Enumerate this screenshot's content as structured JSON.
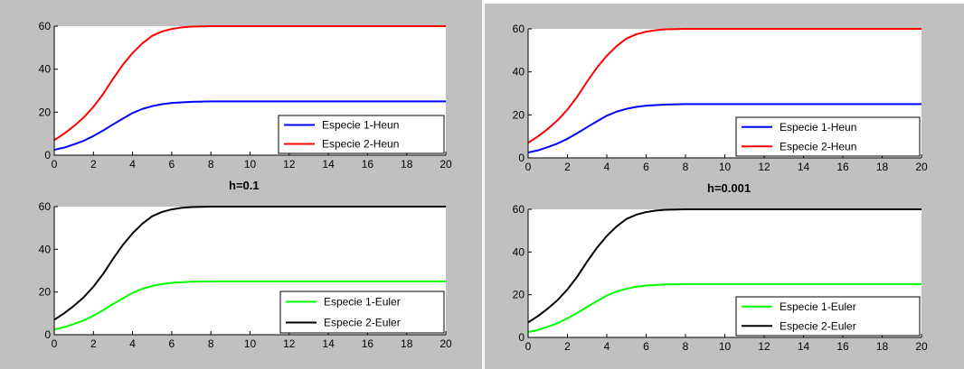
{
  "captions": {
    "left": "h=0.1",
    "right": "h=0.001"
  },
  "chart_data": [
    {
      "type": "line",
      "xlim": [
        0,
        20
      ],
      "ylim": [
        0,
        60
      ],
      "xticks": [
        0,
        2,
        4,
        6,
        8,
        10,
        12,
        14,
        16,
        18,
        20
      ],
      "yticks": [
        0,
        20,
        40,
        60
      ],
      "legend_position": "bottom-right",
      "grid": false,
      "series": [
        {
          "name": "Especie 1-Heun",
          "color": "#0000ff",
          "x": [
            0,
            0.5,
            1,
            1.5,
            2,
            2.5,
            3,
            3.5,
            4,
            4.5,
            5,
            5.5,
            6,
            7,
            8,
            10,
            12,
            14,
            16,
            18,
            20
          ],
          "y": [
            2.5,
            3.5,
            5,
            6.7,
            8.9,
            11.5,
            14.3,
            17,
            19.6,
            21.5,
            22.8,
            23.7,
            24.3,
            24.8,
            25,
            25,
            25,
            25,
            25,
            25,
            25
          ]
        },
        {
          "name": "Especie 2-Heun",
          "color": "#ff0000",
          "x": [
            0,
            0.5,
            1,
            1.5,
            2,
            2.5,
            3,
            3.5,
            4,
            4.5,
            5,
            5.5,
            6,
            6.5,
            7,
            8,
            10,
            12,
            14,
            16,
            18,
            20
          ],
          "y": [
            7,
            10,
            13.5,
            17.5,
            22.5,
            28.5,
            35.5,
            42,
            47.5,
            52,
            55.5,
            57.5,
            58.7,
            59.4,
            59.8,
            60,
            60,
            60,
            60,
            60,
            60,
            60
          ]
        }
      ]
    },
    {
      "type": "line",
      "xlim": [
        0,
        20
      ],
      "ylim": [
        0,
        60
      ],
      "xticks": [
        0,
        2,
        4,
        6,
        8,
        10,
        12,
        14,
        16,
        18,
        20
      ],
      "yticks": [
        0,
        20,
        40,
        60
      ],
      "legend_position": "bottom-right",
      "grid": false,
      "series": [
        {
          "name": "Especie 1-Euler",
          "color": "#00ff00",
          "x": [
            0,
            0.5,
            1,
            1.5,
            2,
            2.5,
            3,
            3.5,
            4,
            4.5,
            5,
            5.5,
            6,
            7,
            8,
            10,
            12,
            14,
            16,
            18,
            20
          ],
          "y": [
            2.5,
            3.5,
            5,
            6.7,
            8.9,
            11.5,
            14.3,
            17,
            19.6,
            21.5,
            22.8,
            23.7,
            24.3,
            24.8,
            25,
            25,
            25,
            25,
            25,
            25,
            25
          ]
        },
        {
          "name": "Especie 2-Euler",
          "color": "#000000",
          "x": [
            0,
            0.5,
            1,
            1.5,
            2,
            2.5,
            3,
            3.5,
            4,
            4.5,
            5,
            5.5,
            6,
            6.5,
            7,
            8,
            10,
            12,
            14,
            16,
            18,
            20
          ],
          "y": [
            7,
            10,
            13.5,
            17.5,
            22.5,
            28.5,
            35.5,
            42,
            47.5,
            52,
            55.5,
            57.5,
            58.7,
            59.4,
            59.8,
            60,
            60,
            60,
            60,
            60,
            60,
            60
          ]
        }
      ]
    },
    {
      "type": "line",
      "xlim": [
        0,
        20
      ],
      "ylim": [
        0,
        60
      ],
      "xticks": [
        0,
        2,
        4,
        6,
        8,
        10,
        12,
        14,
        16,
        18,
        20
      ],
      "yticks": [
        0,
        20,
        40,
        60
      ],
      "legend_position": "bottom-right",
      "grid": false,
      "series": [
        {
          "name": "Especie 1-Heun",
          "color": "#0000ff",
          "x": [
            0,
            0.5,
            1,
            1.5,
            2,
            2.5,
            3,
            3.5,
            4,
            4.5,
            5,
            5.5,
            6,
            7,
            8,
            10,
            12,
            14,
            16,
            18,
            20
          ],
          "y": [
            2.5,
            3.5,
            5,
            6.7,
            8.9,
            11.5,
            14.3,
            17,
            19.6,
            21.5,
            22.8,
            23.7,
            24.3,
            24.8,
            25,
            25,
            25,
            25,
            25,
            25,
            25
          ]
        },
        {
          "name": "Especie 2-Heun",
          "color": "#ff0000",
          "x": [
            0,
            0.5,
            1,
            1.5,
            2,
            2.5,
            3,
            3.5,
            4,
            4.5,
            5,
            5.5,
            6,
            6.5,
            7,
            8,
            10,
            12,
            14,
            16,
            18,
            20
          ],
          "y": [
            7,
            10,
            13.5,
            17.5,
            22.5,
            28.5,
            35.5,
            42,
            47.5,
            52,
            55.5,
            57.5,
            58.7,
            59.4,
            59.8,
            60,
            60,
            60,
            60,
            60,
            60,
            60
          ]
        }
      ]
    },
    {
      "type": "line",
      "xlim": [
        0,
        20
      ],
      "ylim": [
        0,
        60
      ],
      "xticks": [
        0,
        2,
        4,
        6,
        8,
        10,
        12,
        14,
        16,
        18,
        20
      ],
      "yticks": [
        0,
        20,
        40,
        60
      ],
      "legend_position": "bottom-right",
      "grid": false,
      "series": [
        {
          "name": "Especie 1-Euler",
          "color": "#00ff00",
          "x": [
            0,
            0.5,
            1,
            1.5,
            2,
            2.5,
            3,
            3.5,
            4,
            4.5,
            5,
            5.5,
            6,
            7,
            8,
            10,
            12,
            14,
            16,
            18,
            20
          ],
          "y": [
            2.5,
            3.5,
            5,
            6.7,
            8.9,
            11.5,
            14.3,
            17,
            19.6,
            21.5,
            22.8,
            23.7,
            24.3,
            24.8,
            25,
            25,
            25,
            25,
            25,
            25,
            25
          ]
        },
        {
          "name": "Especie 2-Euler",
          "color": "#000000",
          "x": [
            0,
            0.5,
            1,
            1.5,
            2,
            2.5,
            3,
            3.5,
            4,
            4.5,
            5,
            5.5,
            6,
            6.5,
            7,
            8,
            10,
            12,
            14,
            16,
            18,
            20
          ],
          "y": [
            7,
            10,
            13.5,
            17.5,
            22.5,
            28.5,
            35.5,
            42,
            47.5,
            52,
            55.5,
            57.5,
            58.7,
            59.4,
            59.8,
            60,
            60,
            60,
            60,
            60,
            60,
            60
          ]
        }
      ]
    }
  ]
}
